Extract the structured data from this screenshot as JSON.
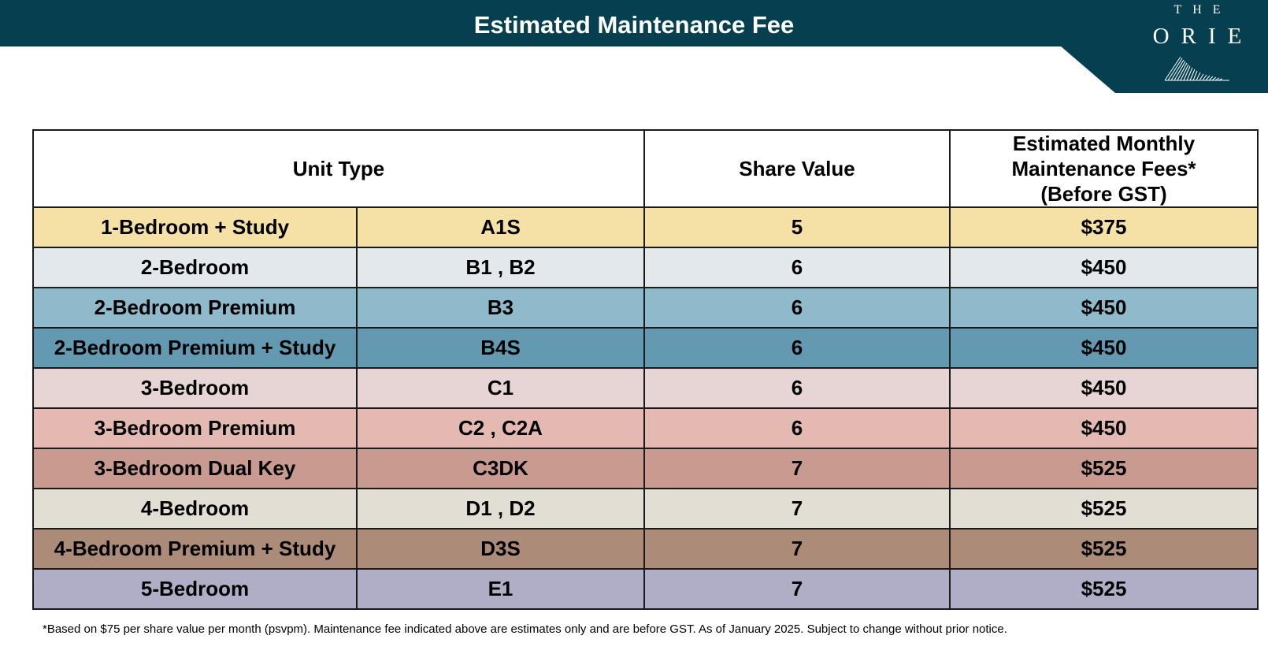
{
  "header": {
    "title": "Estimated Maintenance Fee",
    "background_color": "#053f50"
  },
  "brand": {
    "line1": "THE",
    "line2": "ORIE",
    "mark_icon": "striped-triangle-logo"
  },
  "table": {
    "headers": {
      "unit_type": "Unit Type",
      "share_value": "Share Value",
      "fee_line1": "Estimated Monthly",
      "fee_line2": "Maintenance Fees*",
      "fee_line3": "(Before GST)"
    },
    "rows": [
      {
        "unit_type": "1-Bedroom + Study",
        "code": "A1S",
        "share_value": "5",
        "fee": "$375",
        "color": "#f5e1a5"
      },
      {
        "unit_type": "2-Bedroom",
        "code": "B1 , B2",
        "share_value": "6",
        "fee": "$450",
        "color": "#e3e8ec"
      },
      {
        "unit_type": "2-Bedroom Premium",
        "code": "B3",
        "share_value": "6",
        "fee": "$450",
        "color": "#8fbacb"
      },
      {
        "unit_type": "2-Bedroom Premium + Study",
        "code": "B4S",
        "share_value": "6",
        "fee": "$450",
        "color": "#639ab1"
      },
      {
        "unit_type": "3-Bedroom",
        "code": "C1",
        "share_value": "6",
        "fee": "$450",
        "color": "#e6d5d4"
      },
      {
        "unit_type": "3-Bedroom Premium",
        "code": "C2 , C2A",
        "share_value": "6",
        "fee": "$450",
        "color": "#e3b9b2"
      },
      {
        "unit_type": "3-Bedroom Dual Key",
        "code": "C3DK",
        "share_value": "7",
        "fee": "$525",
        "color": "#c99a8f"
      },
      {
        "unit_type": "4-Bedroom",
        "code": "D1 , D2",
        "share_value": "7",
        "fee": "$525",
        "color": "#e2ded4"
      },
      {
        "unit_type": "4-Bedroom Premium + Study",
        "code": "D3S",
        "share_value": "7",
        "fee": "$525",
        "color": "#ad8b79"
      },
      {
        "unit_type": "5-Bedroom",
        "code": "E1",
        "share_value": "7",
        "fee": "$525",
        "color": "#b0aec6"
      }
    ]
  },
  "footnote": "*Based on $75 per share value per month (psvpm). Maintenance fee indicated above are estimates only and are before GST. As of January 2025. Subject to change without prior notice."
}
